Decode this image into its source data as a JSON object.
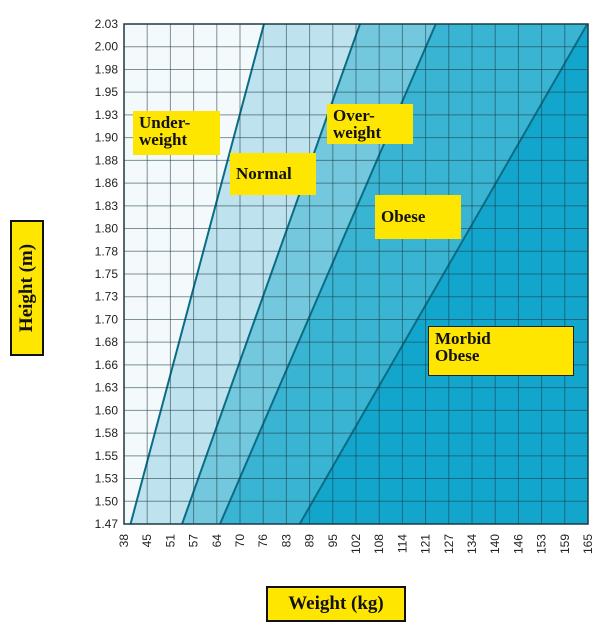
{
  "chart_data": {
    "type": "area",
    "title": "",
    "xlabel": "Weight (kg)",
    "ylabel": "Height (m)",
    "x_ticks": [
      38,
      45,
      51,
      57,
      64,
      70,
      76,
      83,
      89,
      95,
      102,
      108,
      114,
      121,
      127,
      134,
      140,
      146,
      153,
      159,
      165
    ],
    "y_ticks": [
      1.47,
      1.5,
      1.53,
      1.55,
      1.58,
      1.6,
      1.63,
      1.66,
      1.68,
      1.7,
      1.73,
      1.75,
      1.78,
      1.8,
      1.83,
      1.86,
      1.88,
      1.9,
      1.93,
      1.95,
      1.98,
      2.0,
      2.03
    ],
    "xlim": [
      38,
      165
    ],
    "ylim": [
      1.47,
      2.03
    ],
    "regions": [
      "Underweight",
      "Normal",
      "Overweight",
      "Obese",
      "Morbid Obese"
    ],
    "bmi_boundaries": [
      18.5,
      25,
      30,
      40
    ],
    "grid": true,
    "labels": {
      "underweight": "Under-\nweight",
      "normal": "Normal",
      "overweight": "Over-\nweight",
      "obese": "Obese",
      "morbid_obese": "Morbid\nObese"
    }
  },
  "colors": {
    "underweight": "#f4f9fb",
    "normal": "#bfe3ee",
    "overweight": "#73c8dd",
    "obese": "#3ab4d3",
    "morbid_obese": "#13a6cd",
    "label_box": "#ffe600",
    "grid": "#1a3a44"
  }
}
